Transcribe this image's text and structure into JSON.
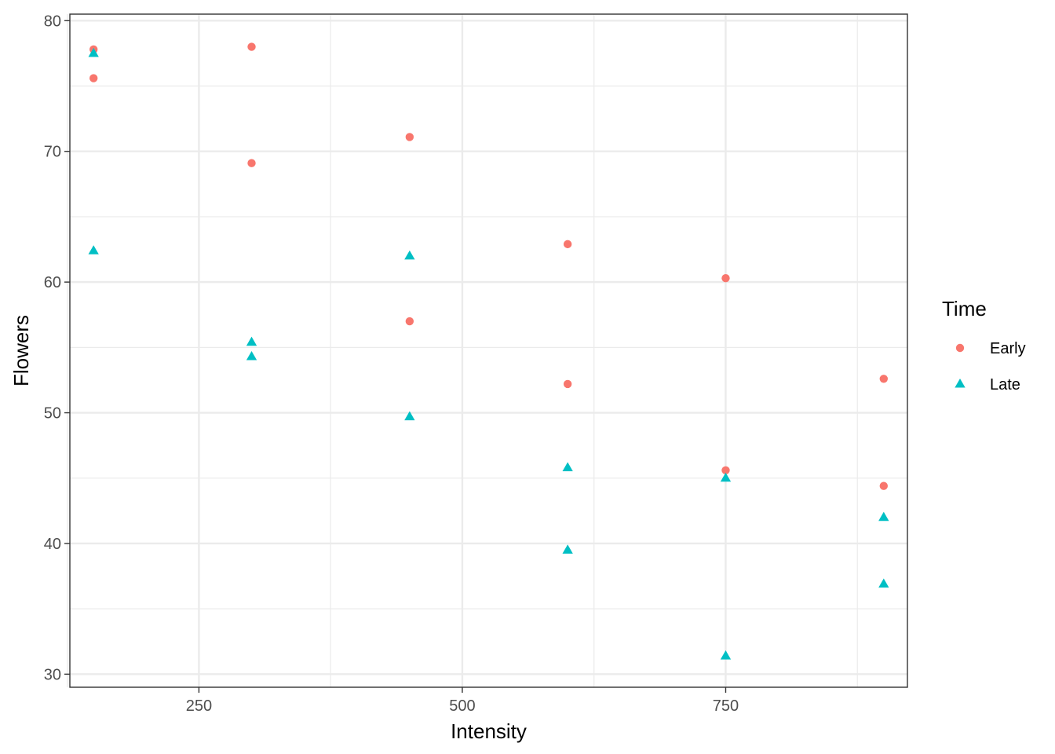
{
  "chart_data": {
    "type": "scatter",
    "xlabel": "Intensity",
    "ylabel": "Flowers",
    "xlim": [
      127.5,
      922.5
    ],
    "ylim": [
      29,
      80.5
    ],
    "x_ticks": [
      250,
      500,
      750
    ],
    "x_minor_ticks": [
      125,
      375,
      625,
      875
    ],
    "y_ticks": [
      30,
      40,
      50,
      60,
      70,
      80
    ],
    "y_minor_ticks": [
      35,
      45,
      55,
      65,
      75
    ],
    "grid": true,
    "legend": {
      "title": "Time",
      "position": "right"
    },
    "series": [
      {
        "name": "Early",
        "color": "#F8766D",
        "marker": "circle",
        "points": [
          {
            "x": 150,
            "y": 77.8
          },
          {
            "x": 150,
            "y": 75.6
          },
          {
            "x": 300,
            "y": 78.0
          },
          {
            "x": 300,
            "y": 69.1
          },
          {
            "x": 450,
            "y": 71.1
          },
          {
            "x": 450,
            "y": 57.0
          },
          {
            "x": 600,
            "y": 62.9
          },
          {
            "x": 600,
            "y": 52.2
          },
          {
            "x": 750,
            "y": 60.3
          },
          {
            "x": 750,
            "y": 45.6
          },
          {
            "x": 900,
            "y": 52.6
          },
          {
            "x": 900,
            "y": 44.4
          }
        ]
      },
      {
        "name": "Late",
        "color": "#00BFC4",
        "marker": "triangle",
        "points": [
          {
            "x": 150,
            "y": 77.5
          },
          {
            "x": 150,
            "y": 62.4
          },
          {
            "x": 300,
            "y": 55.4
          },
          {
            "x": 300,
            "y": 54.3
          },
          {
            "x": 450,
            "y": 62.0
          },
          {
            "x": 450,
            "y": 49.7
          },
          {
            "x": 600,
            "y": 45.8
          },
          {
            "x": 600,
            "y": 39.5
          },
          {
            "x": 750,
            "y": 45.0
          },
          {
            "x": 750,
            "y": 31.4
          },
          {
            "x": 900,
            "y": 42.0
          },
          {
            "x": 900,
            "y": 36.9
          }
        ]
      }
    ]
  }
}
